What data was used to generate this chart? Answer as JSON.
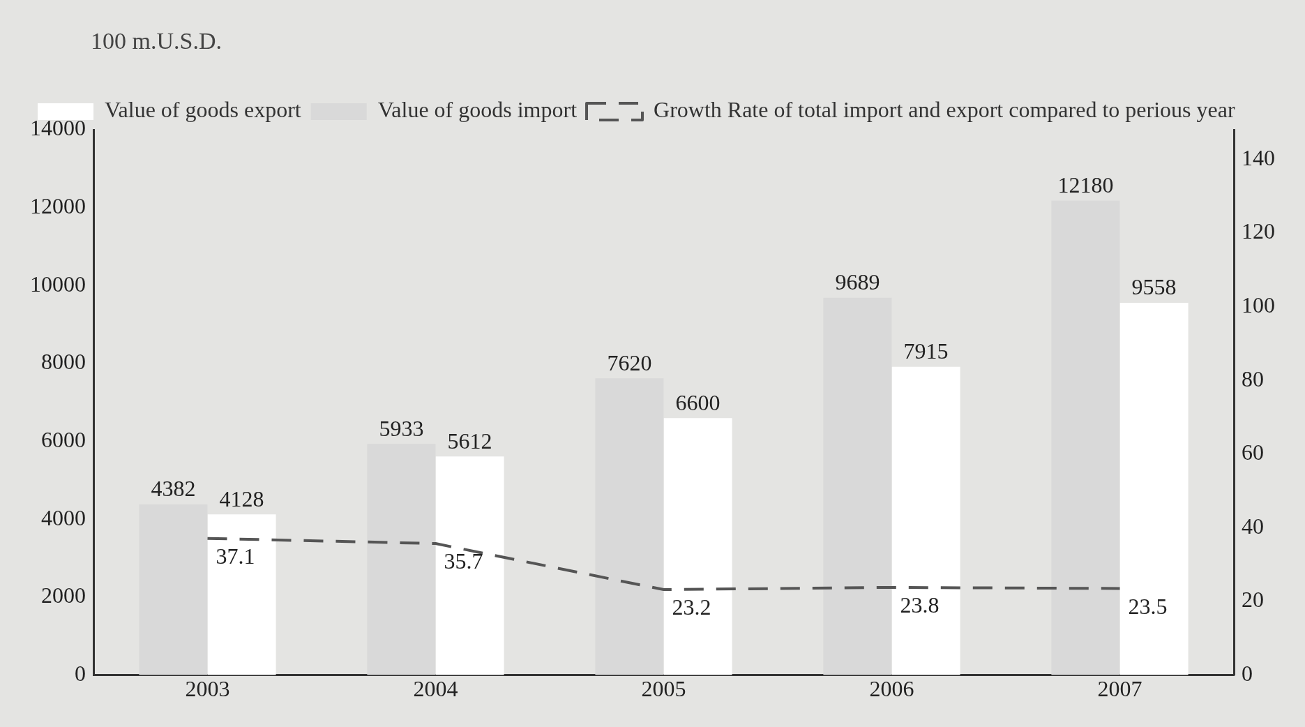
{
  "chart_data": {
    "type": "bar",
    "ylabel": "100 m.U.S.D.",
    "categories": [
      "2003",
      "2004",
      "2005",
      "2006",
      "2007"
    ],
    "series": [
      {
        "name": "Value of goods import",
        "color": "#d9d9d9",
        "values": [
          4382,
          5933,
          7620,
          9689,
          12180
        ]
      },
      {
        "name": "Value of goods export",
        "color": "#ffffff",
        "values": [
          4128,
          5612,
          6600,
          7915,
          9558
        ]
      },
      {
        "name": "Growth Rate of total import and export compared to perious year",
        "type": "line",
        "axis": "y2",
        "color": "#555555",
        "line_style": "dashed",
        "marker": "none",
        "values": [
          37.1,
          35.7,
          23.2,
          23.8,
          23.5
        ]
      }
    ],
    "ylim": [
      0,
      14000
    ],
    "yticks": [
      0,
      2000,
      4000,
      6000,
      8000,
      10000,
      12000,
      14000
    ],
    "y2lim": [
      0,
      148
    ],
    "y2ticks": [
      0,
      20,
      40,
      60,
      80,
      100,
      120,
      140
    ],
    "grid": false,
    "legend": "top left",
    "data_labels": true
  }
}
